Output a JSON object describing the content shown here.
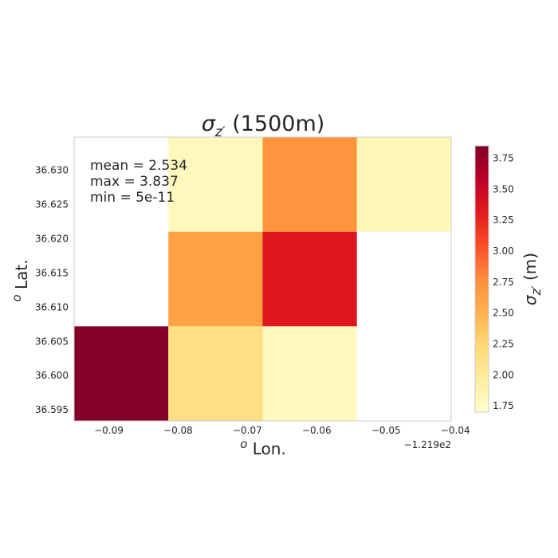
{
  "chart_data": {
    "type": "heatmap",
    "title_symbol": "σ",
    "title_subscript": "z′",
    "title_suffix": " (1500m)",
    "xlabel_prefix": "o",
    "xlabel_text": " Lon.",
    "ylabel_prefix": "o",
    "ylabel_text": " Lat.",
    "x_offset_label": "−1.219e2",
    "x_edges": [
      -0.095,
      -0.0814,
      -0.0678,
      -0.0542,
      -0.0406
    ],
    "y_edges": [
      36.5934,
      36.6072,
      36.621,
      36.6348
    ],
    "xlim": [
      -0.095,
      -0.0406
    ],
    "ylim": [
      36.5934,
      36.6348
    ],
    "x_ticks": [
      -0.09,
      -0.08,
      -0.07,
      -0.06,
      -0.05,
      -0.04
    ],
    "x_tick_labels": [
      "−0.09",
      "−0.08",
      "−0.07",
      "−0.06",
      "−0.05",
      "−0.04"
    ],
    "y_ticks": [
      36.595,
      36.6,
      36.605,
      36.61,
      36.615,
      36.62,
      36.625,
      36.63
    ],
    "y_tick_labels": [
      "36.595",
      "36.600",
      "36.605",
      "36.610",
      "36.615",
      "36.620",
      "36.625",
      "36.630"
    ],
    "cells": [
      {
        "col": 0,
        "row": 0,
        "value": 3.837
      },
      {
        "col": 1,
        "row": 0,
        "value": 2.15
      },
      {
        "col": 2,
        "row": 0,
        "value": 1.78
      },
      {
        "col": 1,
        "row": 1,
        "value": 2.62
      },
      {
        "col": 2,
        "row": 1,
        "value": 3.35
      },
      {
        "col": 1,
        "row": 2,
        "value": 1.8
      },
      {
        "col": 2,
        "row": 2,
        "value": 2.72
      },
      {
        "col": 3,
        "row": 2,
        "value": 1.82
      }
    ],
    "stats": [
      "mean = 2.534",
      "max = 3.837",
      "min = 5e-11"
    ],
    "colorbar": {
      "colormap": "YlOrRd",
      "range": [
        1.7,
        3.85
      ],
      "ticks": [
        1.75,
        2.0,
        2.25,
        2.5,
        2.75,
        3.0,
        3.25,
        3.5,
        3.75
      ],
      "tick_labels": [
        "1.75",
        "2.00",
        "2.25",
        "2.50",
        "2.75",
        "3.00",
        "3.25",
        "3.50",
        "3.75"
      ],
      "label_symbol": "σ",
      "label_subscript": "z′",
      "label_suffix": " (m)"
    },
    "grid": false,
    "colors": {
      "ylorrd": [
        "#ffffcc",
        "#ffeda0",
        "#fed976",
        "#feb24c",
        "#fd8d3c",
        "#fc4e2a",
        "#e31a1c",
        "#bd0026",
        "#800026"
      ],
      "frame": "#cccccc",
      "text": "#262626"
    }
  }
}
